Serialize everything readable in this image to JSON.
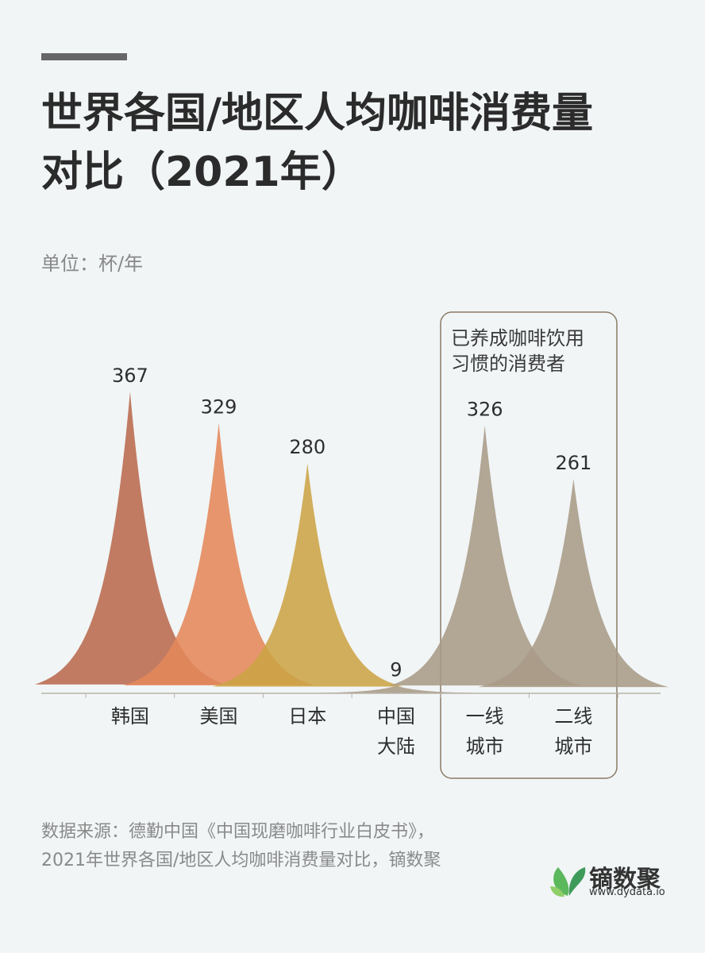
{
  "chart_data": {
    "type": "spike",
    "title": "世界各国/地区人均咖啡消费量对比（2021年）",
    "unit": "单位：杯/年",
    "categories": [
      "韩国",
      "美国",
      "日本",
      "中国大陆",
      "一线城市",
      "二线城市"
    ],
    "values": [
      367,
      329,
      280,
      9,
      326,
      261
    ],
    "colors": [
      "#b96a4f",
      "#e4875a",
      "#cca445",
      "#a99b87",
      "#a99b87",
      "#a99b87"
    ],
    "ylim": [
      0,
      400
    ],
    "annotation": "已养成咖啡饮用习惯的消费者",
    "source": "数据来源：德勤中国《中国现磨咖啡行业白皮书》，2021年世界各国/地区人均咖啡消费量对比，镝数聚",
    "brand": "镝数聚",
    "website": "www.dydata.io"
  }
}
